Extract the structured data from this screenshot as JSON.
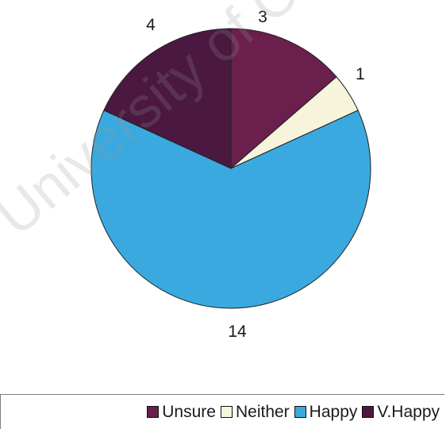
{
  "watermark": "University of Cape Town",
  "chart_data": {
    "type": "pie",
    "title": "",
    "slices": [
      {
        "name": "Unsure",
        "value": 3,
        "label": "3",
        "color": "#6b1f4c"
      },
      {
        "name": "Neither",
        "value": 1,
        "label": "1",
        "color": "#f7f4dc"
      },
      {
        "name": "Happy",
        "value": 14,
        "label": "14",
        "color": "#3aa9e0"
      },
      {
        "name": "V.Happy",
        "value": 4,
        "label": "4",
        "color": "#4a1840"
      }
    ],
    "legend_position": "bottom-right"
  }
}
